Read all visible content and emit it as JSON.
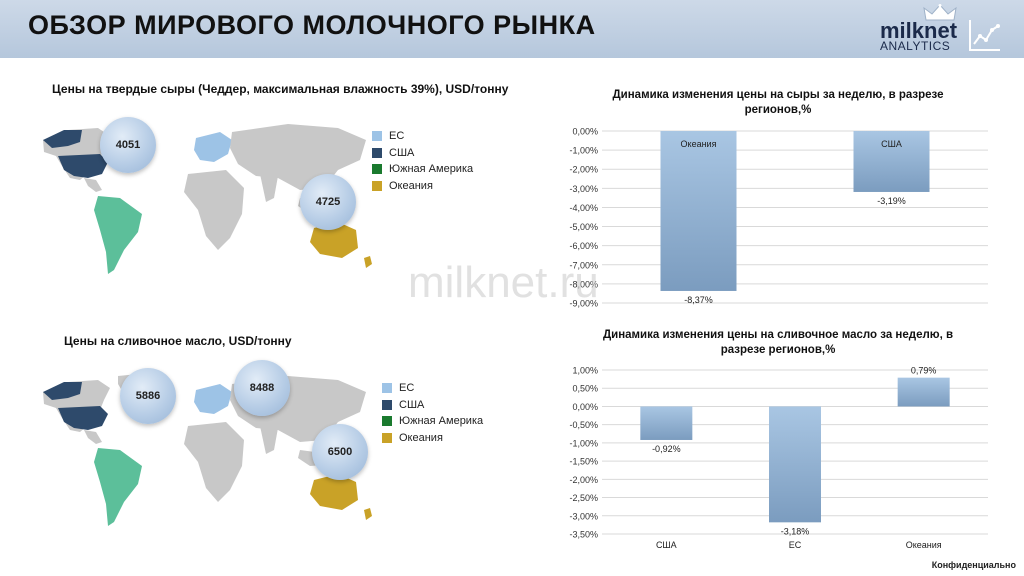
{
  "header": {
    "title": "ОБЗОР МИРОВОГО МОЛОЧНОГО РЫНКА",
    "logo_name": "milknet",
    "logo_sub": "ANALYTICS"
  },
  "colors": {
    "eu": "#9dc3e6",
    "usa": "#2e4a6b",
    "south_america": "#1a7a2e",
    "oceania": "#c9a227",
    "sa_map_fill": "#5cbf9a",
    "world": "#c8c8c8",
    "bar": "#8eb0d1"
  },
  "cheese_section": {
    "title": "Цены на твердые сыры (Чеддер, максимальная влажность 39%), USD/тонну",
    "bubbles": [
      {
        "region": "США",
        "value": "4051"
      },
      {
        "region": "Океания",
        "value": "4725"
      }
    ],
    "legend": [
      {
        "label": "ЕС",
        "color": "#9dc3e6"
      },
      {
        "label": "США",
        "color": "#2e4a6b"
      },
      {
        "label": "Южная Америка",
        "color": "#1a7a2e"
      },
      {
        "label": "Океания",
        "color": "#c9a227"
      }
    ]
  },
  "butter_section": {
    "title": "Цены на сливочное масло, USD/тонну",
    "bubbles": [
      {
        "region": "США",
        "value": "5886"
      },
      {
        "region": "ЕС",
        "value": "8488"
      },
      {
        "region": "Океания",
        "value": "6500"
      }
    ],
    "legend": [
      {
        "label": "ЕС",
        "color": "#9dc3e6"
      },
      {
        "label": "США",
        "color": "#2e4a6b"
      },
      {
        "label": "Южная Америка",
        "color": "#1a7a2e"
      },
      {
        "label": "Океания",
        "color": "#c9a227"
      }
    ]
  },
  "chart_data": [
    {
      "type": "bar",
      "title": "Динамика изменения цены на сыры за неделю, в разрезе регионов,%",
      "categories": [
        "Океания",
        "США"
      ],
      "values": [
        -8.37,
        -3.19
      ],
      "data_labels": [
        "-8,37%",
        "-3,19%"
      ],
      "category_labels_inside_bars": true,
      "ylim": [
        -9,
        0
      ],
      "yticks": [
        "0,00%",
        "-1,00%",
        "-2,00%",
        "-3,00%",
        "-4,00%",
        "-5,00%",
        "-6,00%",
        "-7,00%",
        "-8,00%",
        "-9,00%"
      ],
      "grid": true,
      "xlabel": "",
      "ylabel": ""
    },
    {
      "type": "bar",
      "title": "Динамика изменения цены на сливочное масло за неделю, в разрезе регионов,%",
      "categories": [
        "США",
        "ЕС",
        "Океания"
      ],
      "values": [
        -0.92,
        -3.18,
        0.79
      ],
      "data_labels": [
        "-0,92%",
        "-3,18%",
        "0,79%"
      ],
      "category_labels_inside_bars": false,
      "ylim": [
        -3.5,
        1
      ],
      "yticks": [
        "1,00%",
        "0,50%",
        "0,00%",
        "-0,50%",
        "-1,00%",
        "-1,50%",
        "-2,00%",
        "-2,50%",
        "-3,00%",
        "-3,50%"
      ],
      "grid": true,
      "xlabel": "",
      "ylabel": ""
    }
  ],
  "watermark": "milknet.ru",
  "footer": "Конфиденциально"
}
